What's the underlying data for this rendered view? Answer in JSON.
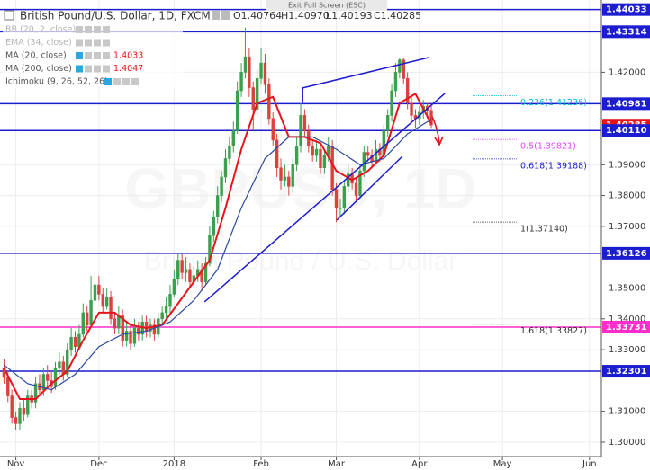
{
  "chart_data": {
    "type": "candlestick",
    "title": "British Pound/U.S. Dollar, 1D, FXCM",
    "ohlc_labels": [
      "O1.40764",
      "H1.40970",
      "L1.40193",
      "C1.40285"
    ],
    "exit_button": "Exit Full Screen (ESC)",
    "watermark": [
      "GBPUSD, 1D",
      "British Pound / U.S. Dollar"
    ],
    "indicators": [
      {
        "name": "BB (20, 2, close)",
        "faint": true
      },
      {
        "name": "EMA (34, close)",
        "faint": true
      },
      {
        "name": "MA (20, close)",
        "value": "1.4033"
      },
      {
        "name": "MA (200, close)",
        "value": "1.4047"
      },
      {
        "name": "Ichimoku (9, 26, 52, 26)"
      }
    ],
    "up_color": "#3c9f4e",
    "down_color": "#d9423f",
    "xlim": [
      -1,
      151
    ],
    "ylim": [
      1.29533,
      1.44344
    ],
    "xticks": [
      {
        "value": 3,
        "label": "Nov"
      },
      {
        "value": 24,
        "label": "Dec"
      },
      {
        "value": 43,
        "label": "2018"
      },
      {
        "value": 65,
        "label": "Feb"
      },
      {
        "value": 84,
        "label": "Mar"
      },
      {
        "value": 105,
        "label": "Apr"
      },
      {
        "value": 126,
        "label": "May"
      },
      {
        "value": 148,
        "label": "Jun"
      }
    ],
    "yticks": [
      {
        "value": 1.42,
        "label": "1.42000"
      },
      {
        "value": 1.39,
        "label": "1.39000"
      },
      {
        "value": 1.38,
        "label": "1.38000"
      },
      {
        "value": 1.37,
        "label": "1.37000"
      },
      {
        "value": 1.35,
        "label": "1.35000"
      },
      {
        "value": 1.34,
        "label": "1.34000"
      },
      {
        "value": 1.33,
        "label": "1.33000"
      },
      {
        "value": 1.31,
        "label": "1.31000"
      },
      {
        "value": 1.3,
        "label": "1.30000"
      }
    ],
    "grid": true,
    "candles": [
      [
        1.324,
        1.327,
        1.319,
        1.321
      ],
      [
        1.321,
        1.323,
        1.313,
        1.315
      ],
      [
        1.315,
        1.317,
        1.306,
        1.308
      ],
      [
        1.308,
        1.31,
        1.304,
        1.306
      ],
      [
        1.306,
        1.313,
        1.304,
        1.311
      ],
      [
        1.311,
        1.314,
        1.307,
        1.309
      ],
      [
        1.309,
        1.317,
        1.308,
        1.315
      ],
      [
        1.315,
        1.317,
        1.311,
        1.313
      ],
      [
        1.313,
        1.321,
        1.311,
        1.319
      ],
      [
        1.319,
        1.322,
        1.315,
        1.317
      ],
      [
        1.317,
        1.324,
        1.315,
        1.322
      ],
      [
        1.322,
        1.325,
        1.318,
        1.32
      ],
      [
        1.32,
        1.323,
        1.316,
        1.318
      ],
      [
        1.318,
        1.326,
        1.317,
        1.324
      ],
      [
        1.324,
        1.329,
        1.322,
        1.326
      ],
      [
        1.326,
        1.328,
        1.32,
        1.322
      ],
      [
        1.322,
        1.332,
        1.321,
        1.33
      ],
      [
        1.33,
        1.337,
        1.328,
        1.334
      ],
      [
        1.334,
        1.336,
        1.329,
        1.331
      ],
      [
        1.331,
        1.338,
        1.33,
        1.335
      ],
      [
        1.335,
        1.345,
        1.334,
        1.342
      ],
      [
        1.342,
        1.344,
        1.336,
        1.338
      ],
      [
        1.338,
        1.354,
        1.337,
        1.346
      ],
      [
        1.346,
        1.355,
        1.344,
        1.351
      ],
      [
        1.351,
        1.354,
        1.346,
        1.348
      ],
      [
        1.348,
        1.35,
        1.342,
        1.344
      ],
      [
        1.344,
        1.35,
        1.343,
        1.347
      ],
      [
        1.347,
        1.349,
        1.338,
        1.34
      ],
      [
        1.34,
        1.342,
        1.335,
        1.337
      ],
      [
        1.337,
        1.344,
        1.335,
        1.341
      ],
      [
        1.341,
        1.343,
        1.331,
        1.333
      ],
      [
        1.333,
        1.339,
        1.331,
        1.336
      ],
      [
        1.336,
        1.338,
        1.33,
        1.332
      ],
      [
        1.332,
        1.34,
        1.331,
        1.337
      ],
      [
        1.337,
        1.339,
        1.333,
        1.335
      ],
      [
        1.335,
        1.341,
        1.333,
        1.339
      ],
      [
        1.339,
        1.341,
        1.334,
        1.336
      ],
      [
        1.336,
        1.34,
        1.334,
        1.338
      ],
      [
        1.338,
        1.34,
        1.333,
        1.335
      ],
      [
        1.335,
        1.342,
        1.334,
        1.34
      ],
      [
        1.34,
        1.344,
        1.338,
        1.342
      ],
      [
        1.342,
        1.347,
        1.34,
        1.344
      ],
      [
        1.344,
        1.351,
        1.342,
        1.348
      ],
      [
        1.348,
        1.356,
        1.347,
        1.353
      ],
      [
        1.353,
        1.361,
        1.351,
        1.359
      ],
      [
        1.359,
        1.361,
        1.353,
        1.355
      ],
      [
        1.355,
        1.36,
        1.352,
        1.356
      ],
      [
        1.356,
        1.358,
        1.35,
        1.352
      ],
      [
        1.352,
        1.357,
        1.35,
        1.354
      ],
      [
        1.354,
        1.359,
        1.352,
        1.356
      ],
      [
        1.356,
        1.358,
        1.349,
        1.352
      ],
      [
        1.352,
        1.36,
        1.351,
        1.358
      ],
      [
        1.358,
        1.37,
        1.357,
        1.367
      ],
      [
        1.367,
        1.375,
        1.365,
        1.373
      ],
      [
        1.373,
        1.383,
        1.371,
        1.38
      ],
      [
        1.38,
        1.388,
        1.378,
        1.386
      ],
      [
        1.386,
        1.395,
        1.384,
        1.392
      ],
      [
        1.392,
        1.399,
        1.39,
        1.396
      ],
      [
        1.396,
        1.404,
        1.394,
        1.401
      ],
      [
        1.401,
        1.417,
        1.4,
        1.414
      ],
      [
        1.414,
        1.423,
        1.412,
        1.42
      ],
      [
        1.42,
        1.4345,
        1.418,
        1.425
      ],
      [
        1.425,
        1.428,
        1.412,
        1.415
      ],
      [
        1.415,
        1.417,
        1.401,
        1.408
      ],
      [
        1.408,
        1.421,
        1.406,
        1.418
      ],
      [
        1.418,
        1.428,
        1.416,
        1.423
      ],
      [
        1.423,
        1.426,
        1.413,
        1.416
      ],
      [
        1.416,
        1.418,
        1.403,
        1.405
      ],
      [
        1.405,
        1.407,
        1.396,
        1.398
      ],
      [
        1.398,
        1.4,
        1.386,
        1.389
      ],
      [
        1.389,
        1.392,
        1.382,
        1.385
      ],
      [
        1.385,
        1.39,
        1.383,
        1.386
      ],
      [
        1.386,
        1.388,
        1.38,
        1.383
      ],
      [
        1.383,
        1.392,
        1.381,
        1.39
      ],
      [
        1.39,
        1.399,
        1.388,
        1.396
      ],
      [
        1.396,
        1.41,
        1.394,
        1.406
      ],
      [
        1.406,
        1.408,
        1.399,
        1.401
      ],
      [
        1.401,
        1.403,
        1.394,
        1.396
      ],
      [
        1.396,
        1.398,
        1.391,
        1.393
      ],
      [
        1.393,
        1.398,
        1.391,
        1.395
      ],
      [
        1.395,
        1.397,
        1.387,
        1.389
      ],
      [
        1.389,
        1.395,
        1.387,
        1.393
      ],
      [
        1.393,
        1.399,
        1.391,
        1.396
      ],
      [
        1.396,
        1.398,
        1.38,
        1.382
      ],
      [
        1.382,
        1.384,
        1.3714,
        1.376
      ],
      [
        1.376,
        1.379,
        1.373,
        1.376
      ],
      [
        1.376,
        1.385,
        1.374,
        1.383
      ],
      [
        1.383,
        1.39,
        1.381,
        1.387
      ],
      [
        1.387,
        1.389,
        1.382,
        1.384
      ],
      [
        1.384,
        1.386,
        1.378,
        1.38
      ],
      [
        1.38,
        1.39,
        1.379,
        1.388
      ],
      [
        1.388,
        1.396,
        1.386,
        1.394
      ],
      [
        1.394,
        1.396,
        1.391,
        1.393
      ],
      [
        1.393,
        1.395,
        1.389,
        1.391
      ],
      [
        1.391,
        1.398,
        1.39,
        1.395
      ],
      [
        1.395,
        1.397,
        1.391,
        1.393
      ],
      [
        1.393,
        1.403,
        1.392,
        1.401
      ],
      [
        1.401,
        1.408,
        1.399,
        1.406
      ],
      [
        1.406,
        1.416,
        1.404,
        1.414
      ],
      [
        1.414,
        1.423,
        1.412,
        1.42
      ],
      [
        1.42,
        1.4245,
        1.418,
        1.424
      ],
      [
        1.424,
        1.4245,
        1.416,
        1.418
      ],
      [
        1.418,
        1.42,
        1.408,
        1.41
      ],
      [
        1.41,
        1.412,
        1.404,
        1.406
      ],
      [
        1.406,
        1.408,
        1.402,
        1.405
      ],
      [
        1.405,
        1.409,
        1.403,
        1.407
      ],
      [
        1.407,
        1.411,
        1.405,
        1.409
      ],
      [
        1.409,
        1.41,
        1.405,
        1.4076
      ],
      [
        1.40764,
        1.4097,
        1.40193,
        1.40285
      ]
    ],
    "series": [
      {
        "name": "MA (20, close)",
        "color": "#e8141b",
        "x": [
          0,
          4,
          8,
          12,
          16,
          20,
          24,
          28,
          32,
          36,
          40,
          44,
          48,
          52,
          56,
          60,
          64,
          68,
          72,
          76,
          80,
          84,
          88,
          92,
          96,
          100,
          104,
          108
        ],
        "values": [
          1.324,
          1.314,
          1.314,
          1.319,
          1.323,
          1.333,
          1.342,
          1.342,
          1.338,
          1.337,
          1.338,
          1.345,
          1.352,
          1.359,
          1.376,
          1.395,
          1.41,
          1.412,
          1.399,
          1.399,
          1.397,
          1.388,
          1.385,
          1.388,
          1.393,
          1.41,
          1.413,
          1.4033
        ]
      },
      {
        "name": "MA (200, close)",
        "color": "#2b4a9e",
        "x": [
          0,
          6,
          12,
          18,
          24,
          30,
          36,
          42,
          48,
          54,
          60,
          66,
          72,
          78,
          84,
          90,
          96,
          102,
          108
        ],
        "values": [
          1.325,
          1.319,
          1.317,
          1.322,
          1.331,
          1.335,
          1.336,
          1.339,
          1.346,
          1.356,
          1.376,
          1.392,
          1.399,
          1.399,
          1.395,
          1.39,
          1.392,
          1.4,
          1.4047
        ]
      }
    ],
    "trendlines": [
      {
        "color": "#1c1cd0",
        "points": [
          [
            50.7,
            1.3455
          ],
          [
            111.4,
            1.4131
          ]
        ]
      },
      {
        "color": "#1c1cd0",
        "points": [
          [
            75.5,
            1.4101
          ],
          [
            75.5,
            1.4149
          ],
          [
            107.5,
            1.4248
          ]
        ]
      },
      {
        "color": "#1c1cd0",
        "points": [
          [
            84.1,
            1.372
          ],
          [
            100.7,
            1.3927
          ]
        ]
      }
    ],
    "levels": [
      {
        "value": 1.44033,
        "color": "#1c1cd0"
      },
      {
        "value": 1.43314,
        "color": "#1c1cd0"
      },
      {
        "value": 1.40981,
        "color": "#1c1cd0"
      },
      {
        "value": 1.40285,
        "color": "#e8141b",
        "price": true
      },
      {
        "value": 1.4011,
        "label": "1.40110",
        "color": "#1c1cd0"
      },
      {
        "value": 1.36126,
        "color": "#1c1cd0"
      },
      {
        "value": 1.33731,
        "color": "#ff2ecb"
      },
      {
        "value": 1.32301,
        "color": "#1c1cd0"
      }
    ],
    "fib_levels": [
      {
        "value": 1.41236,
        "label": "0.236(1.41236)",
        "color": "#00b8d4"
      },
      {
        "value": 1.39821,
        "label": "0.5(1.39821)",
        "color": "#e040fb"
      },
      {
        "value": 1.39188,
        "label": "0.618(1.39188)",
        "color": "#1c1cd0"
      },
      {
        "value": 1.3714,
        "label": "1(1.37140)",
        "color": "#333333"
      },
      {
        "value": 1.33827,
        "label": "1.618(1.33827)",
        "color": "#333333"
      }
    ]
  }
}
